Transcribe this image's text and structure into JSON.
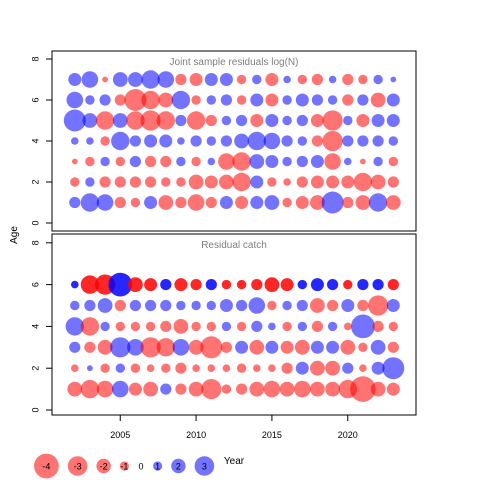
{
  "chart_data": {
    "type": "scatter",
    "subtype": "bubble",
    "xlabel": "Year",
    "ylabel": "Age",
    "xticks": [
      2005,
      2010,
      2015,
      2020
    ],
    "yticks": [
      0,
      2,
      4,
      6,
      8
    ],
    "xlim": [
      2000.5,
      2024.5
    ],
    "ylim": [
      -0.4,
      8.3
    ],
    "years": [
      2002,
      2003,
      2004,
      2005,
      2006,
      2007,
      2008,
      2009,
      2010,
      2011,
      2012,
      2013,
      2014,
      2015,
      2016,
      2017,
      2018,
      2019,
      2020,
      2021,
      2022,
      2023
    ],
    "colors": {
      "positive": "#0000ff",
      "negative": "#ff0000"
    },
    "panels": [
      {
        "title": "Joint sample residuals log(N)",
        "ages": [
          1,
          2,
          3,
          4,
          5,
          6,
          7
        ],
        "fill_opacity": 0.55,
        "residuals": [
          [
            0.8,
            1.6,
            1.4,
            -0.8,
            -0.6,
            1.0,
            -1.2,
            -0.8,
            -1.4,
            -0.8,
            1.0,
            -1.0,
            1.0,
            1.2,
            -0.6,
            -1.0,
            -1.2,
            2.0,
            -0.8,
            -1.2,
            1.6,
            -1.2
          ],
          [
            -0.6,
            0.6,
            -0.8,
            -0.8,
            -0.8,
            -0.8,
            -0.6,
            -0.6,
            -1.2,
            -1.0,
            -1.2,
            -1.6,
            1.0,
            -0.6,
            -0.4,
            -0.8,
            -1.0,
            -1.0,
            -1.0,
            -1.6,
            -1.2,
            -0.8
          ],
          [
            -0.2,
            -0.6,
            0.6,
            -0.6,
            0.8,
            -0.8,
            -0.8,
            0.6,
            -0.6,
            0.4,
            -1.4,
            -1.6,
            1.2,
            1.0,
            0.6,
            0.8,
            1.0,
            -1.4,
            0.4,
            -0.2,
            0.6,
            -0.6
          ],
          [
            0.4,
            0.4,
            -0.6,
            1.6,
            0.8,
            1.0,
            1.0,
            0.4,
            0.8,
            0.6,
            0.8,
            1.2,
            1.6,
            1.4,
            0.8,
            0.6,
            -0.8,
            -1.8,
            0.8,
            0.8,
            0.8,
            0.6
          ],
          [
            2.0,
            1.2,
            -1.6,
            1.2,
            -1.6,
            -1.8,
            -1.6,
            0.8,
            -1.6,
            -0.8,
            0.6,
            0.8,
            -1.0,
            1.0,
            0.6,
            0.8,
            -1.0,
            -1.8,
            0.6,
            -1.0,
            1.0,
            1.0
          ],
          [
            1.4,
            0.6,
            0.8,
            -0.8,
            -2.0,
            -1.6,
            -1.2,
            1.6,
            -0.6,
            0.6,
            0.8,
            -0.6,
            1.0,
            -1.0,
            0.6,
            1.0,
            0.8,
            0.6,
            -0.8,
            0.8,
            -1.2,
            1.0
          ],
          [
            1.0,
            1.4,
            -0.2,
            1.2,
            1.2,
            1.6,
            1.4,
            -0.8,
            -1.0,
            1.0,
            1.0,
            -0.6,
            0.6,
            -1.0,
            0.4,
            -0.6,
            -0.8,
            0.4,
            -0.8,
            -0.6,
            0.6,
            0.2
          ]
        ]
      },
      {
        "title": "Residual catch",
        "ages": [
          1,
          2,
          3,
          4,
          5,
          6
        ],
        "fill_opacity": 0.55,
        "strong_row": 6,
        "residuals": [
          [
            -1.2,
            -1.6,
            -1.4,
            1.4,
            -1.0,
            -1.2,
            0.8,
            -0.8,
            -1.2,
            -1.8,
            -0.6,
            -0.8,
            -1.2,
            -1.4,
            -1.2,
            -1.4,
            -1.2,
            -1.2,
            -1.6,
            -2.4,
            -1.2,
            -1.0
          ],
          [
            -0.4,
            0.2,
            -0.6,
            0.6,
            -0.6,
            -0.4,
            -0.6,
            -0.8,
            -0.4,
            -0.4,
            -0.4,
            -0.6,
            -0.4,
            -0.4,
            -0.8,
            1.0,
            -1.2,
            -1.2,
            0.8,
            -0.4,
            1.0,
            2.0
          ],
          [
            0.8,
            -0.8,
            -1.2,
            1.8,
            1.4,
            -1.8,
            -1.6,
            1.4,
            -1.2,
            -2.0,
            -0.8,
            1.0,
            -1.2,
            1.0,
            -1.0,
            -1.2,
            1.0,
            1.0,
            -1.2,
            -0.6,
            1.2,
            -0.8
          ],
          [
            1.6,
            -1.6,
            0.6,
            -0.6,
            -0.6,
            -0.6,
            -0.8,
            -1.2,
            -0.6,
            -0.6,
            0.6,
            -0.6,
            0.8,
            0.4,
            -0.6,
            0.6,
            -0.8,
            0.6,
            -0.4,
            2.2,
            -0.8,
            -0.6
          ],
          [
            0.6,
            0.8,
            1.2,
            -0.8,
            0.8,
            0.8,
            0.8,
            0.6,
            0.6,
            0.6,
            1.0,
            0.8,
            1.4,
            -0.6,
            0.6,
            0.8,
            -1.2,
            -0.8,
            1.0,
            -0.8,
            -1.8,
            1.0
          ],
          [
            0.4,
            -1.6,
            -1.8,
            2.2,
            -1.2,
            -1.0,
            0.8,
            -1.0,
            -0.8,
            0.8,
            -0.6,
            -0.6,
            -0.8,
            -1.2,
            -1.0,
            0.6,
            1.0,
            0.8,
            -0.6,
            0.8,
            0.8,
            -0.8
          ]
        ]
      }
    ],
    "legend": {
      "placement": "bottom-left",
      "entries": [
        {
          "label": "-4",
          "value": -4
        },
        {
          "label": "-3",
          "value": -3
        },
        {
          "label": "-2",
          "value": -2
        },
        {
          "label": "-1",
          "value": -1
        },
        {
          "label": "0",
          "value": 0
        },
        {
          "label": "1",
          "value": 1
        },
        {
          "label": "2",
          "value": 2
        },
        {
          "label": "3",
          "value": 3
        }
      ]
    }
  }
}
